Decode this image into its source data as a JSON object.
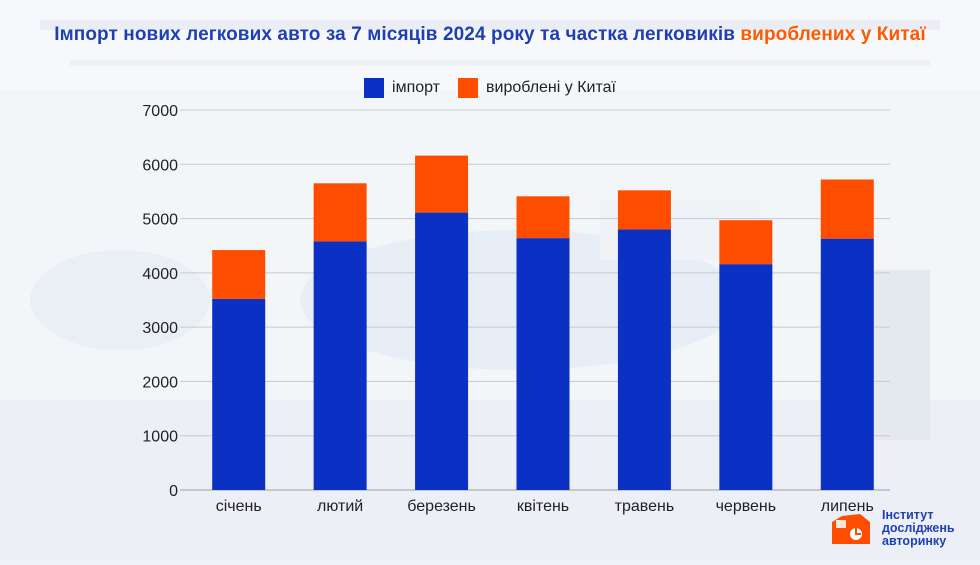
{
  "title": {
    "main": "Імпорт нових легкових авто за 7 місяців 2024 року та частка легковиків ",
    "accent": "вироблених у Китаї"
  },
  "legend": {
    "import_label": "імпорт",
    "china_label": "вироблені у Китаї"
  },
  "colors": {
    "import": "#0b30c4",
    "china": "#ff4d00",
    "title": "#1f3fb5",
    "title_accent": "#ff5a00"
  },
  "logo": {
    "line1": "Інститут",
    "line2": "досліджень",
    "line3": "авторинку",
    "icon": "car-logo-icon"
  },
  "chart_data": {
    "type": "bar",
    "stacked": true,
    "categories": [
      "січень",
      "лютий",
      "березень",
      "квітень",
      "травень",
      "червень",
      "липень"
    ],
    "series": [
      {
        "name": "імпорт",
        "values": [
          3520,
          4580,
          5110,
          4640,
          4800,
          4160,
          4630
        ]
      },
      {
        "name": "вироблені у Китаї",
        "values": [
          900,
          1070,
          1050,
          770,
          720,
          810,
          1090
        ]
      }
    ],
    "ylim": [
      0,
      7000
    ],
    "yticks": [
      0,
      1000,
      2000,
      3000,
      4000,
      5000,
      6000,
      7000
    ],
    "grid": true,
    "legend_position": "top-center"
  }
}
